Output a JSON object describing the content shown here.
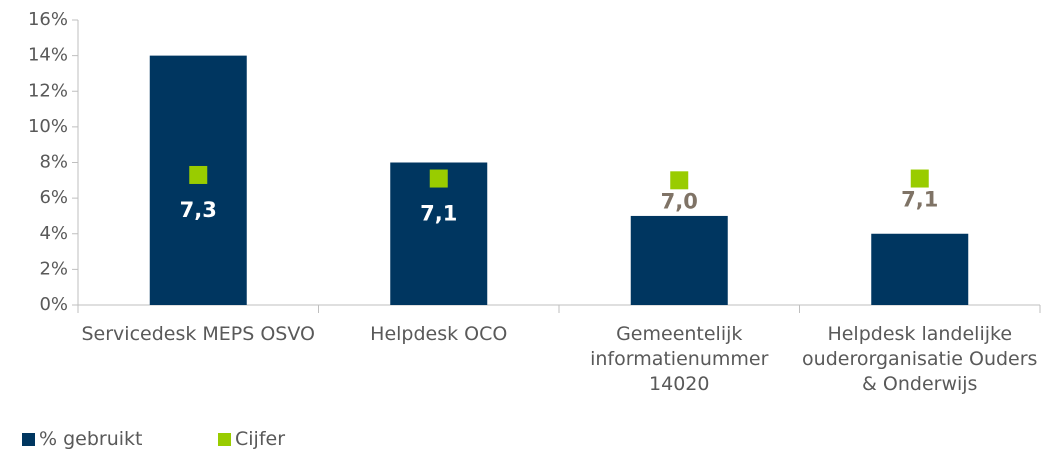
{
  "chart_data": {
    "type": "bar",
    "categories": [
      "Servicedesk MEPS OSVO",
      "Helpdesk OCO",
      "Gemeentelijk informatienummer 14020",
      "Helpdesk landelijke ouderorganisatie Ouders & Onderwijs"
    ],
    "series": [
      {
        "name": "% gebruikt",
        "type": "bar",
        "color": "#003660",
        "values": [
          14,
          8,
          5,
          4
        ]
      },
      {
        "name": "Cijfer",
        "type": "marker",
        "color": "#99cc00",
        "values": [
          7.3,
          7.1,
          7.0,
          7.1
        ],
        "value_labels": [
          "7,3",
          "7,1",
          "7,0",
          "7,1"
        ]
      }
    ],
    "ylim": [
      0,
      16
    ],
    "yticks": [
      {
        "value": 0,
        "label": "0%"
      },
      {
        "value": 2,
        "label": "2%"
      },
      {
        "value": 4,
        "label": "4%"
      },
      {
        "value": 6,
        "label": "6%"
      },
      {
        "value": 8,
        "label": "8%"
      },
      {
        "value": 10,
        "label": "10%"
      },
      {
        "value": 12,
        "label": "12%"
      },
      {
        "value": 14,
        "label": "14%"
      },
      {
        "value": 16,
        "label": "16%"
      }
    ],
    "grid": false,
    "legend": "bottom-left"
  }
}
